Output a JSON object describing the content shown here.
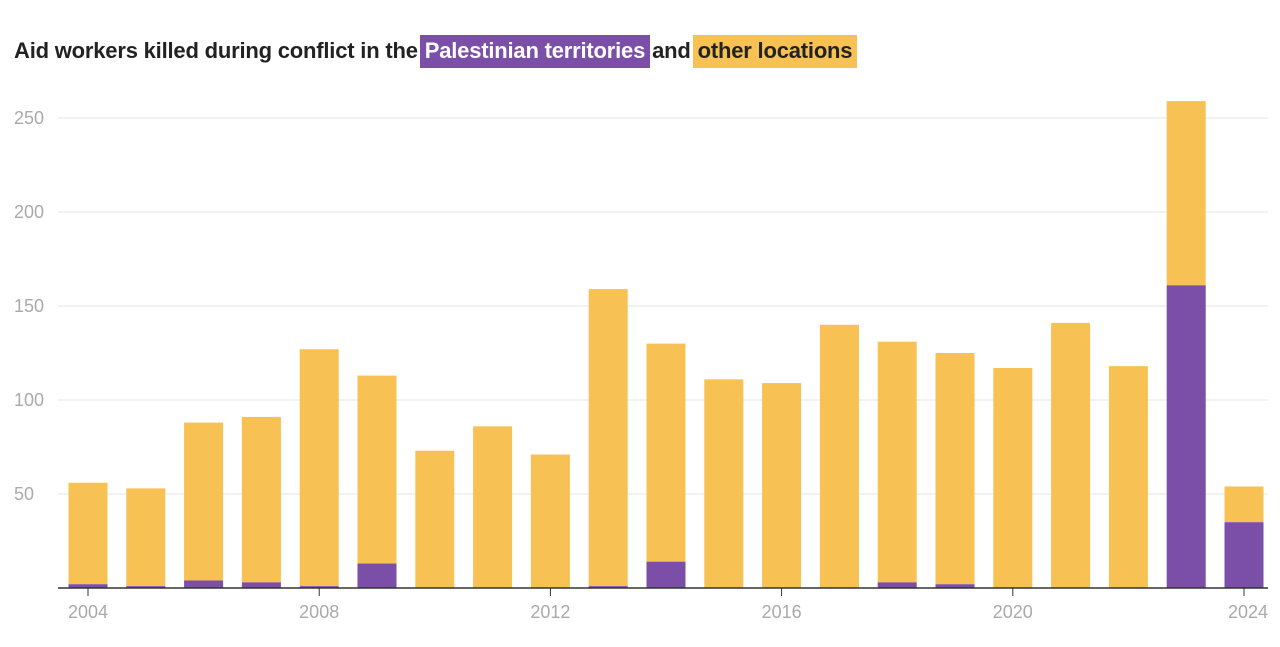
{
  "title": {
    "prefix": "Aid workers killed during conflict in the",
    "series1_label": "Palestinian territories",
    "middle": "and",
    "series2_label": "other locations"
  },
  "colors": {
    "palestinian": "#7b4ea8",
    "other": "#f7c153",
    "grid": "#e6e6e6",
    "axis": "#333333",
    "tick_text": "#aaaaaa"
  },
  "chart_data": {
    "type": "bar",
    "stacked": true,
    "title": "Aid workers killed during conflict in the Palestinian territories and other locations",
    "xlabel": "",
    "ylabel": "",
    "categories": [
      2004,
      2005,
      2006,
      2007,
      2008,
      2009,
      2010,
      2011,
      2012,
      2013,
      2014,
      2015,
      2016,
      2017,
      2018,
      2019,
      2020,
      2021,
      2022,
      2023,
      2024
    ],
    "series": [
      {
        "name": "Palestinian territories",
        "values": [
          2,
          1,
          4,
          3,
          1,
          13,
          0,
          0,
          0,
          1,
          14,
          0,
          0,
          0,
          3,
          2,
          0,
          0,
          0,
          161,
          35
        ]
      },
      {
        "name": "other locations",
        "values": [
          54,
          52,
          84,
          88,
          126,
          100,
          73,
          86,
          71,
          158,
          116,
          111,
          109,
          140,
          128,
          123,
          117,
          141,
          118,
          98,
          19
        ]
      }
    ],
    "ylim": [
      0,
      260
    ],
    "yticks": [
      50,
      100,
      150,
      200,
      250
    ],
    "xticks": [
      2004,
      2008,
      2012,
      2016,
      2020,
      2024
    ],
    "grid": true
  }
}
